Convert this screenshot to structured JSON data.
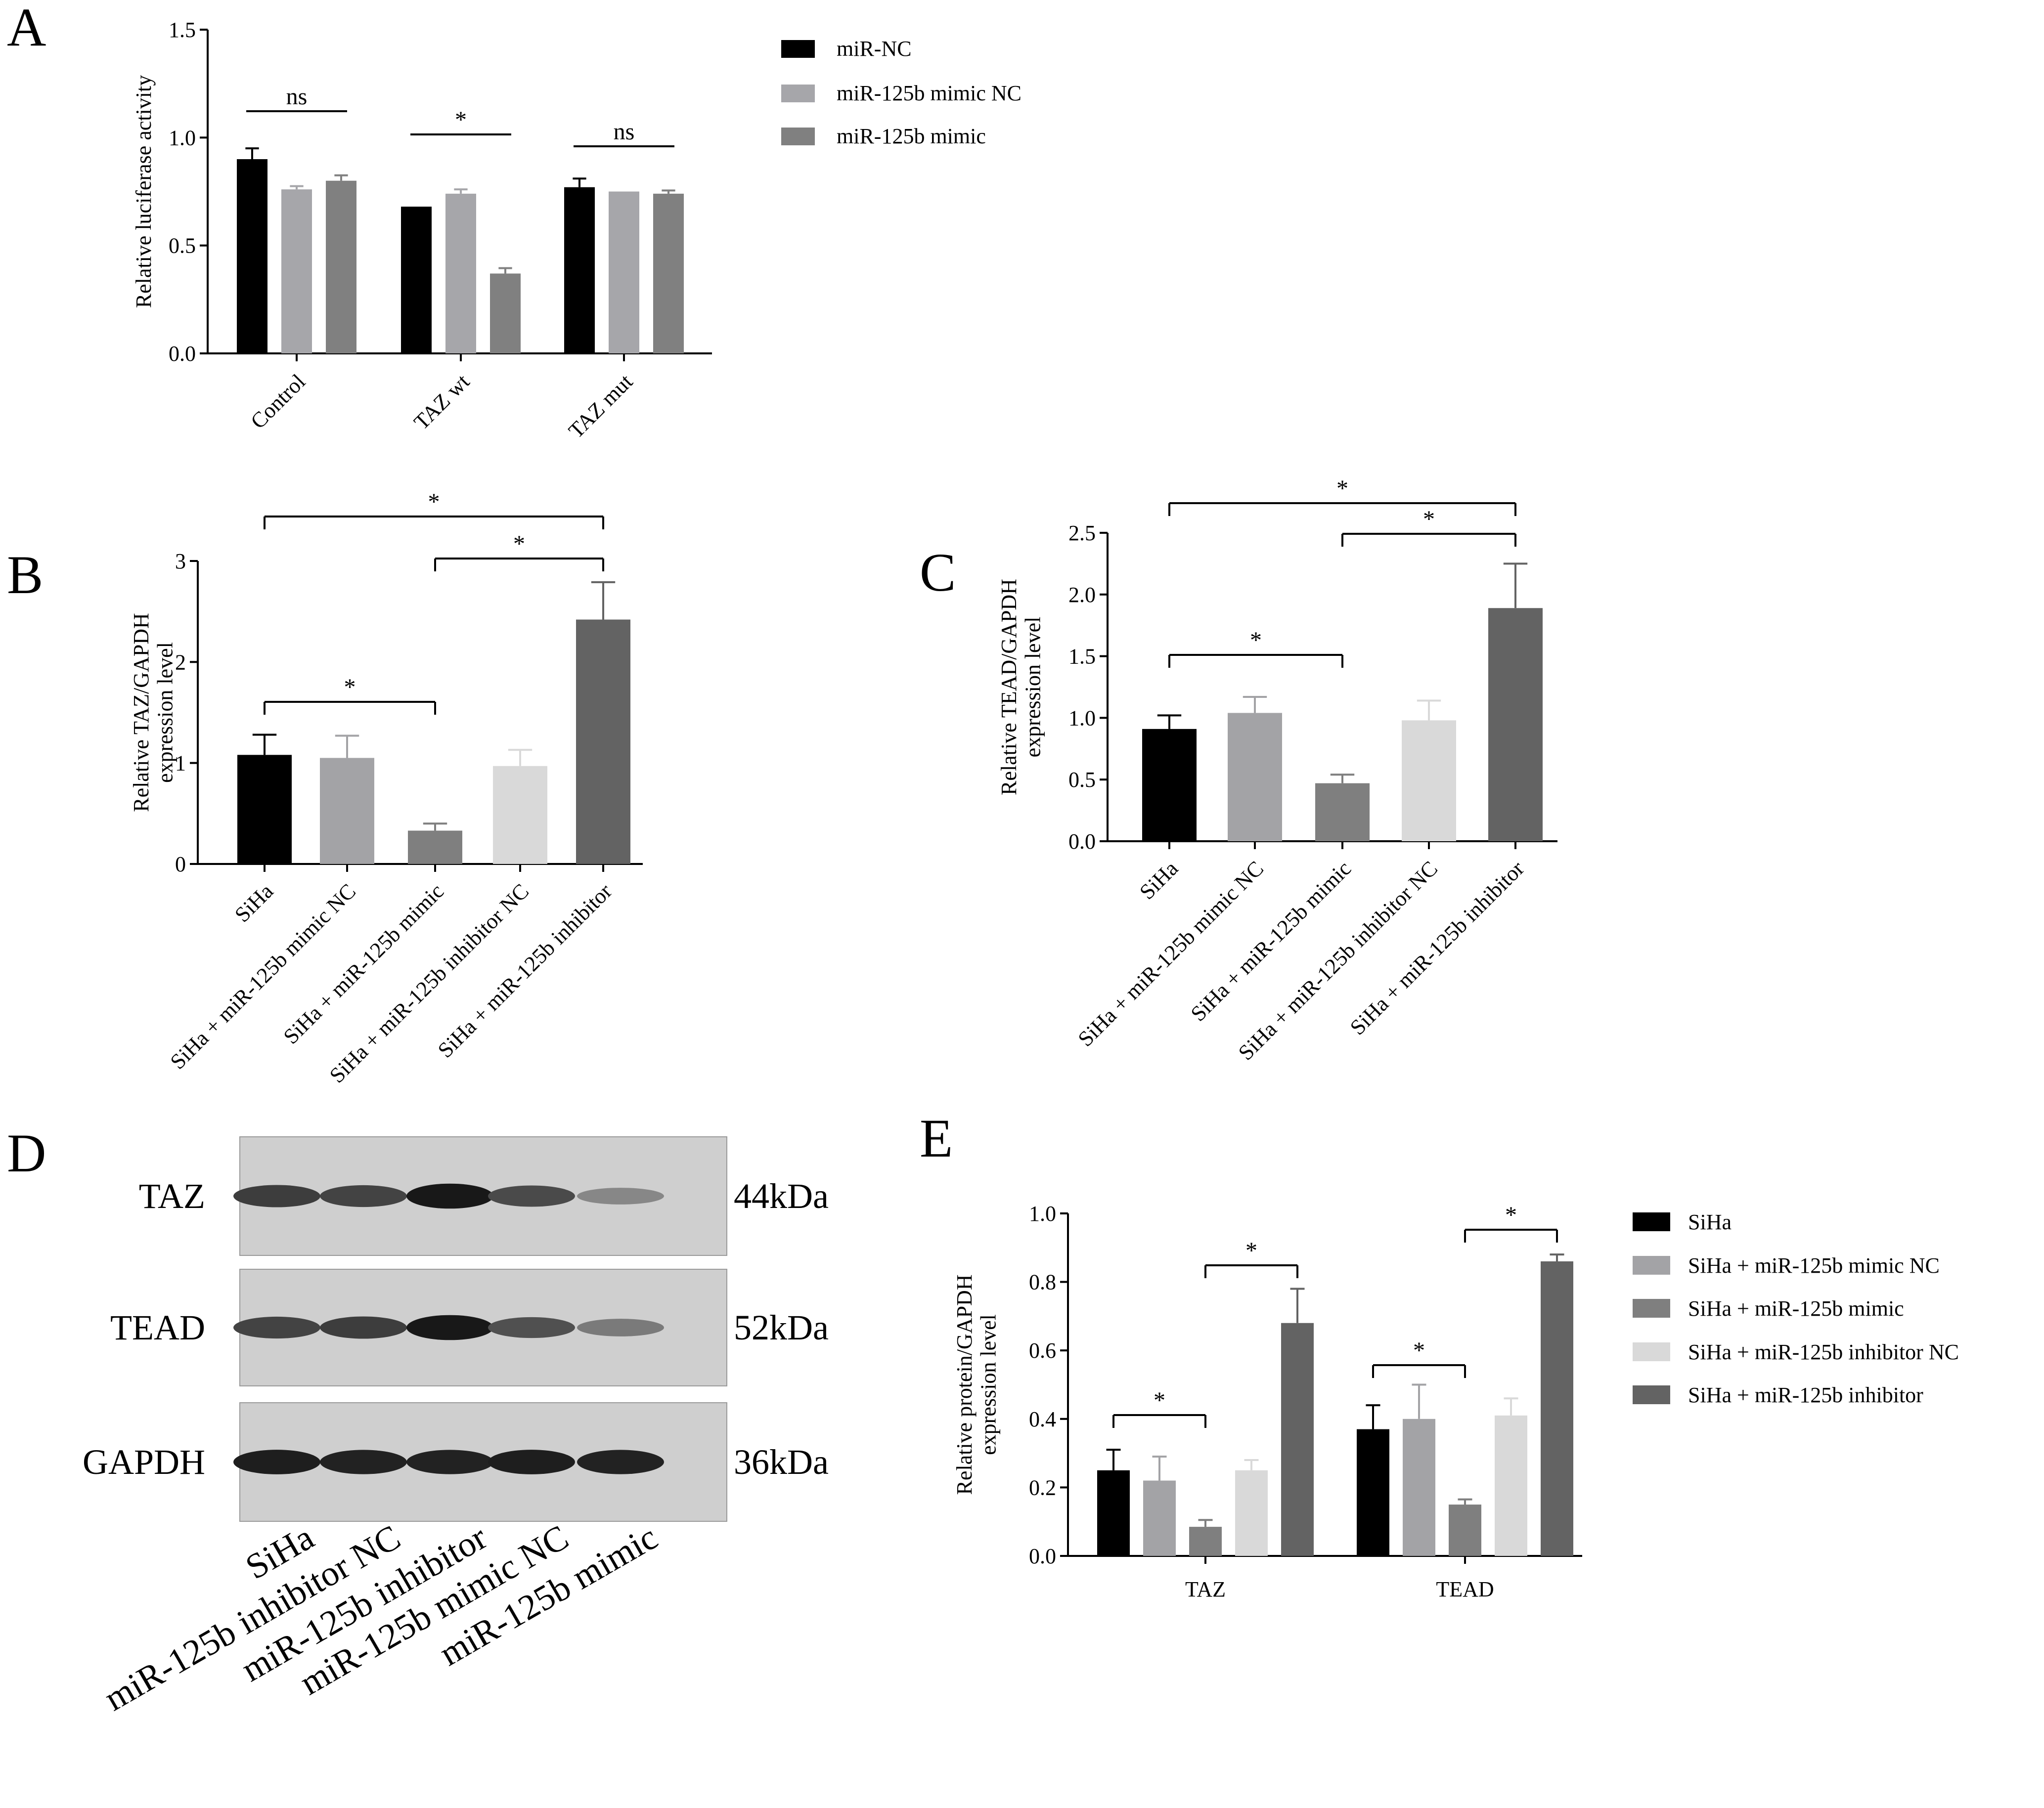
{
  "panels": {
    "A": {
      "label": "A"
    },
    "B": {
      "label": "B"
    },
    "C": {
      "label": "C"
    },
    "D": {
      "label": "D"
    },
    "E": {
      "label": "E"
    }
  },
  "chart_data": [
    {
      "id": "A",
      "type": "bar",
      "ylabel": "Relative luciferase activity",
      "ylim": [
        0,
        1.5
      ],
      "yticks": [
        "0.0",
        "0.5",
        "1.0",
        "1.5"
      ],
      "categories": [
        "Control",
        "TAZ wt",
        "TAZ mut"
      ],
      "series": [
        {
          "name": "miR-NC",
          "color": "#000000",
          "values": [
            0.9,
            0.68,
            0.77
          ],
          "errors": [
            0.05,
            0.0,
            0.04
          ]
        },
        {
          "name": "miR-125b mimic NC",
          "color": "#a6a6aa",
          "values": [
            0.76,
            0.74,
            0.75
          ],
          "errors": [
            0.015,
            0.02,
            0.0
          ]
        },
        {
          "name": "miR-125b mimic",
          "color": "#808080",
          "values": [
            0.8,
            0.37,
            0.74
          ],
          "errors": [
            0.025,
            0.025,
            0.015
          ]
        }
      ],
      "legend": {
        "position": "top-right"
      },
      "significance": [
        {
          "label": "ns",
          "group": 0
        },
        {
          "label": "*",
          "group": 1
        },
        {
          "label": "ns",
          "group": 2
        }
      ]
    },
    {
      "id": "B",
      "type": "bar",
      "ylabel": "Relative TAZ/GAPDH expression level",
      "ylim": [
        0,
        3
      ],
      "yticks": [
        "0",
        "1",
        "2",
        "3"
      ],
      "categories": [
        "SiHa",
        "SiHa + miR-125b mimic NC",
        "SiHa + miR-125b mimic",
        "SiHa + miR-125b inhibitor NC",
        "SiHa + miR-125b inhibitor"
      ],
      "values": [
        1.08,
        1.05,
        0.33,
        0.97,
        2.42
      ],
      "errors": [
        0.2,
        0.22,
        0.07,
        0.16,
        0.37
      ],
      "colors": [
        "#000000",
        "#a3a3a6",
        "#7f7f7f",
        "#d9d9d9",
        "#636363"
      ],
      "significance": [
        {
          "label": "*",
          "from": 0,
          "to": 2
        },
        {
          "label": "*",
          "from": 2,
          "to": 4
        },
        {
          "label": "*",
          "from": 0,
          "to": 4
        }
      ]
    },
    {
      "id": "C",
      "type": "bar",
      "ylabel": "Relative TEAD/GAPDH expression level",
      "ylim": [
        0,
        2.5
      ],
      "yticks": [
        "0.0",
        "0.5",
        "1.0",
        "1.5",
        "2.0",
        "2.5"
      ],
      "categories": [
        "SiHa",
        "SiHa + miR-125b mimic NC",
        "SiHa + miR-125b mimic",
        "SiHa + miR-125b inhibitor NC",
        "SiHa + miR-125b inhibitor"
      ],
      "values": [
        0.91,
        1.04,
        0.47,
        0.98,
        1.89
      ],
      "errors": [
        0.11,
        0.13,
        0.07,
        0.16,
        0.36
      ],
      "colors": [
        "#000000",
        "#a3a3a6",
        "#7f7f7f",
        "#d9d9d9",
        "#636363"
      ],
      "significance": [
        {
          "label": "*",
          "from": 0,
          "to": 2
        },
        {
          "label": "*",
          "from": 2,
          "to": 4
        },
        {
          "label": "*",
          "from": 0,
          "to": 4
        }
      ]
    },
    {
      "id": "E",
      "type": "bar",
      "ylabel": "Relative protein/GAPDH expression level",
      "ylim": [
        0,
        1.0
      ],
      "yticks": [
        "0.0",
        "0.2",
        "0.4",
        "0.6",
        "0.8",
        "1.0"
      ],
      "categories": [
        "TAZ",
        "TEAD"
      ],
      "series": [
        {
          "name": "SiHa",
          "color": "#000000",
          "values": [
            0.25,
            0.37
          ],
          "errors": [
            0.06,
            0.07
          ]
        },
        {
          "name": "SiHa + miR-125b mimic NC",
          "color": "#a3a3a6",
          "values": [
            0.22,
            0.4
          ],
          "errors": [
            0.07,
            0.1
          ]
        },
        {
          "name": "SiHa + miR-125b mimic",
          "color": "#7f7f7f",
          "values": [
            0.085,
            0.15
          ],
          "errors": [
            0.02,
            0.015
          ]
        },
        {
          "name": "SiHa + miR-125b inhibitor NC",
          "color": "#d9d9d9",
          "values": [
            0.25,
            0.41
          ],
          "errors": [
            0.03,
            0.05
          ]
        },
        {
          "name": "SiHa + miR-125b inhibitor",
          "color": "#636363",
          "values": [
            0.68,
            0.86
          ],
          "errors": [
            0.1,
            0.02
          ]
        }
      ],
      "legend": {
        "position": "right"
      },
      "significance": [
        {
          "label": "*",
          "group": 0,
          "from": 0,
          "to": 2
        },
        {
          "label": "*",
          "group": 0,
          "from": 2,
          "to": 4
        },
        {
          "label": "*",
          "group": 1,
          "from": 0,
          "to": 2
        },
        {
          "label": "*",
          "group": 1,
          "from": 2,
          "to": 4
        }
      ]
    }
  ],
  "western_blot": {
    "rows": [
      {
        "protein": "TAZ",
        "size": "44kDa",
        "intensities": [
          0.75,
          0.72,
          0.95,
          0.68,
          0.35
        ]
      },
      {
        "protein": "TEAD",
        "size": "52kDa",
        "intensities": [
          0.72,
          0.75,
          0.95,
          0.65,
          0.42
        ]
      },
      {
        "protein": "GAPDH",
        "size": "36kDa",
        "intensities": [
          0.92,
          0.9,
          0.9,
          0.92,
          0.9
        ]
      }
    ],
    "lanes": [
      "SiHa",
      "miR-125b inhibitor NC",
      "miR-125b inhibitor",
      "miR-125b mimic NC",
      "miR-125b mimic"
    ]
  }
}
